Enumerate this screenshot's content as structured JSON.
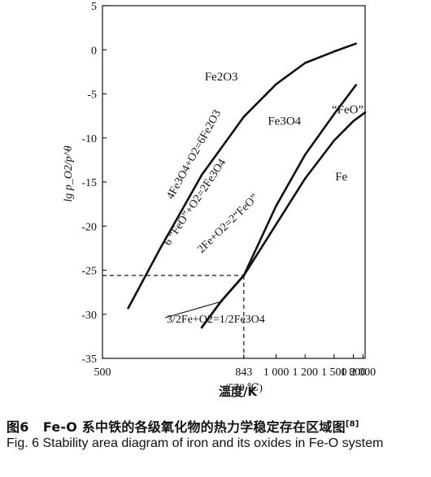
{
  "chart_data": {
    "type": "line",
    "xlabel": "温度/K",
    "ylabel": "lg p_O2/p^θ",
    "x_scale": "reciprocal",
    "xlim": [
      500,
      2050
    ],
    "ylim": [
      -35,
      5
    ],
    "x_ticks": [
      500,
      843,
      1000,
      1200,
      1500,
      1800,
      2000
    ],
    "x_tick_labels": [
      "500",
      "843",
      "1 000",
      "1 200",
      "1 500",
      "1 800",
      "2 000"
    ],
    "x_tick_sublabel": "(570 ℃)",
    "y_ticks": [
      5,
      0,
      -5,
      -10,
      -15,
      -20,
      -25,
      -30,
      -35
    ],
    "y_tick_labels": [
      "5",
      "0",
      "-5",
      "-10",
      "-15",
      "-20",
      "-25",
      "-30",
      "-35"
    ],
    "grid": false,
    "series": [
      {
        "name": "4Fe3O4+O2=6Fe2O3",
        "x": [
          540,
          600,
          700,
          843,
          1000,
          1200,
          1500,
          1850
        ],
        "y": [
          -29.3,
          -22.5,
          -14.2,
          -7.6,
          -3.9,
          -1.5,
          -0.2,
          0.7
        ]
      },
      {
        "name": "6 \"FeO\"+O2=2Fe3O4",
        "x": [
          700,
          760,
          843,
          1000,
          1200,
          1500,
          1850
        ],
        "y": [
          -31.5,
          -28.5,
          -25.6,
          -17.7,
          -11.9,
          -7.3,
          -4.0
        ]
      },
      {
        "name": "2Fe+O2=2\"FeO\"",
        "x": [
          843,
          1000,
          1200,
          1500,
          1800,
          2050
        ],
        "y": [
          -25.6,
          -19.8,
          -14.6,
          -10.3,
          -8.1,
          -7.1
        ]
      },
      {
        "name": "3/2Fe+O2=1/2Fe3O4",
        "x": [
          700,
          760,
          843
        ],
        "y": [
          -31.5,
          -28.5,
          -25.6
        ]
      }
    ],
    "reference_point": {
      "x": 843,
      "y": -25.6
    },
    "region_labels": [
      {
        "text": "Fe2O3",
        "x": 760,
        "y": -3.5
      },
      {
        "text": "Fe3O4",
        "x": 1050,
        "y": -8.5
      },
      {
        "text": "“FeO”",
        "x": 1700,
        "y": -7.2
      },
      {
        "text": "Fe",
        "x": 1600,
        "y": -14.8
      }
    ],
    "curve_labels": [
      {
        "text": "4Fe3O4+O2=6Fe2O3"
      },
      {
        "text": "6 “FeO”+O2=2Fe3O4"
      },
      {
        "text": "2Fe+O2=2“FeO”"
      },
      {
        "text": "3/2Fe+O2=1/2Fe3O4"
      }
    ]
  },
  "caption": {
    "cn_fig": "图6",
    "cn_text": "Fe-O 系中铁的各级氧化物的热力学稳定存在区域图",
    "cn_ref": "[8]",
    "en_fig": "Fig. 6",
    "en_text": "Stability area diagram of iron and its oxides in Fe-O system"
  }
}
